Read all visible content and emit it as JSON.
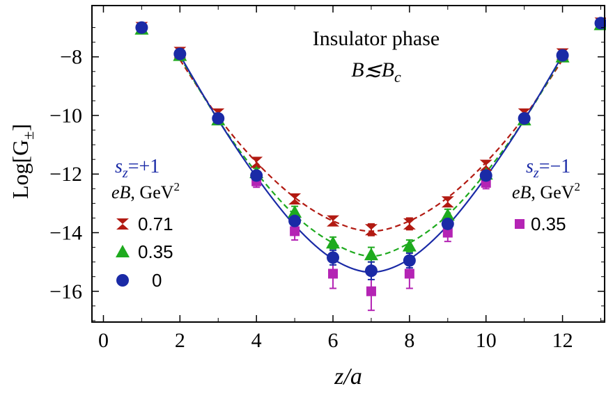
{
  "chart_data": {
    "type": "scatter",
    "title": "Insulator phase",
    "subtitle": "B≲B",
    "subtitle_sub": "c",
    "xlabel": "z/a",
    "ylabel": "Log[G",
    "ylabel_sub": "±",
    "ylabel_close": "]",
    "xlim": [
      -0.3,
      13.1
    ],
    "ylim": [
      -17.05,
      -6.25
    ],
    "xticks": [
      0,
      2,
      4,
      6,
      8,
      10,
      12
    ],
    "yticks": [
      -8,
      -10,
      -12,
      -14,
      -16
    ],
    "ytick_labels": [
      "−8",
      "−10",
      "−12",
      "−14",
      "−16"
    ],
    "grid": false,
    "legend_left": {
      "header": "s",
      "header_sub": "z",
      "header_value": "=+1",
      "field": "eB",
      "field_unit": ", GeV",
      "field_exp": "2",
      "entries": [
        "0.71",
        "0.35",
        "0"
      ]
    },
    "legend_right": {
      "header": "s",
      "header_sub": "z",
      "header_value": "=−1",
      "field": "eB",
      "field_unit": ", GeV",
      "field_exp": "2",
      "entries": [
        "0.35"
      ]
    },
    "series": [
      {
        "name": "0.71",
        "marker": "bowtie",
        "color": "#b21a12",
        "line": "dashed",
        "x": [
          1,
          2,
          3,
          4,
          5,
          6,
          7,
          8,
          9,
          10,
          11,
          12,
          13
        ],
        "y": [
          -7.0,
          -7.85,
          -9.95,
          -11.6,
          -12.85,
          -13.6,
          -13.9,
          -13.7,
          -12.95,
          -11.7,
          -9.95,
          -7.9,
          -6.85
        ],
        "err": [
          0.1,
          0.1,
          0.12,
          0.12,
          0.15,
          0.15,
          0.2,
          0.2,
          0.15,
          0.12,
          0.12,
          0.1,
          0.1
        ],
        "fit": [
          [
            2,
            -8.1
          ],
          [
            3,
            -10.05
          ],
          [
            4,
            -11.6
          ],
          [
            5,
            -12.8
          ],
          [
            6,
            -13.6
          ],
          [
            7,
            -13.95
          ],
          [
            8,
            -13.6
          ],
          [
            9,
            -12.8
          ],
          [
            10,
            -11.6
          ],
          [
            11,
            -10.05
          ],
          [
            12,
            -8.1
          ]
        ]
      },
      {
        "name": "0.35",
        "marker": "triangle",
        "color": "#1eaa1e",
        "line": "dashed",
        "x": [
          1,
          2,
          3,
          4,
          5,
          6,
          7,
          8,
          9,
          10,
          11,
          12,
          13
        ],
        "y": [
          -7.05,
          -7.95,
          -10.15,
          -11.95,
          -13.3,
          -14.35,
          -14.75,
          -14.45,
          -13.4,
          -12.0,
          -10.15,
          -8.0,
          -6.9
        ],
        "err": [
          0.1,
          0.1,
          0.12,
          0.15,
          0.2,
          0.2,
          0.25,
          0.2,
          0.2,
          0.15,
          0.12,
          0.1,
          0.1
        ],
        "fit": [
          [
            2,
            -8.0
          ],
          [
            3,
            -10.15
          ],
          [
            4,
            -11.95
          ],
          [
            5,
            -13.4
          ],
          [
            6,
            -14.35
          ],
          [
            7,
            -14.8
          ],
          [
            8,
            -14.35
          ],
          [
            9,
            -13.4
          ],
          [
            10,
            -11.95
          ],
          [
            11,
            -10.15
          ],
          [
            12,
            -8.0
          ]
        ]
      },
      {
        "name": "0",
        "marker": "circle",
        "color": "#1a2aa6",
        "line": "solid",
        "x": [
          1,
          2,
          3,
          4,
          5,
          6,
          7,
          8,
          9,
          10,
          11,
          12,
          13
        ],
        "y": [
          -7.0,
          -7.9,
          -10.1,
          -12.05,
          -13.6,
          -14.85,
          -15.3,
          -14.95,
          -13.7,
          -12.05,
          -10.1,
          -7.95,
          -6.85
        ],
        "err": [
          0.1,
          0.1,
          0.12,
          0.15,
          0.2,
          0.25,
          0.3,
          0.25,
          0.2,
          0.15,
          0.12,
          0.1,
          0.1
        ],
        "fit": [
          [
            2,
            -7.95
          ],
          [
            3,
            -10.15
          ],
          [
            4,
            -12.1
          ],
          [
            5,
            -13.75
          ],
          [
            6,
            -14.9
          ],
          [
            7,
            -15.35
          ],
          [
            8,
            -14.9
          ],
          [
            9,
            -13.75
          ],
          [
            10,
            -12.1
          ],
          [
            11,
            -10.15
          ],
          [
            12,
            -7.95
          ]
        ]
      },
      {
        "name": "0.35 (s_z=−1)",
        "marker": "square",
        "color": "#b424b4",
        "line": "none",
        "x": [
          4,
          5,
          6,
          7,
          8,
          9,
          10
        ],
        "y": [
          -12.25,
          -13.95,
          -15.4,
          -16.0,
          -15.4,
          -14.0,
          -12.3
        ],
        "err": [
          0.2,
          0.3,
          0.5,
          0.65,
          0.5,
          0.3,
          0.2
        ],
        "fit": []
      }
    ]
  }
}
